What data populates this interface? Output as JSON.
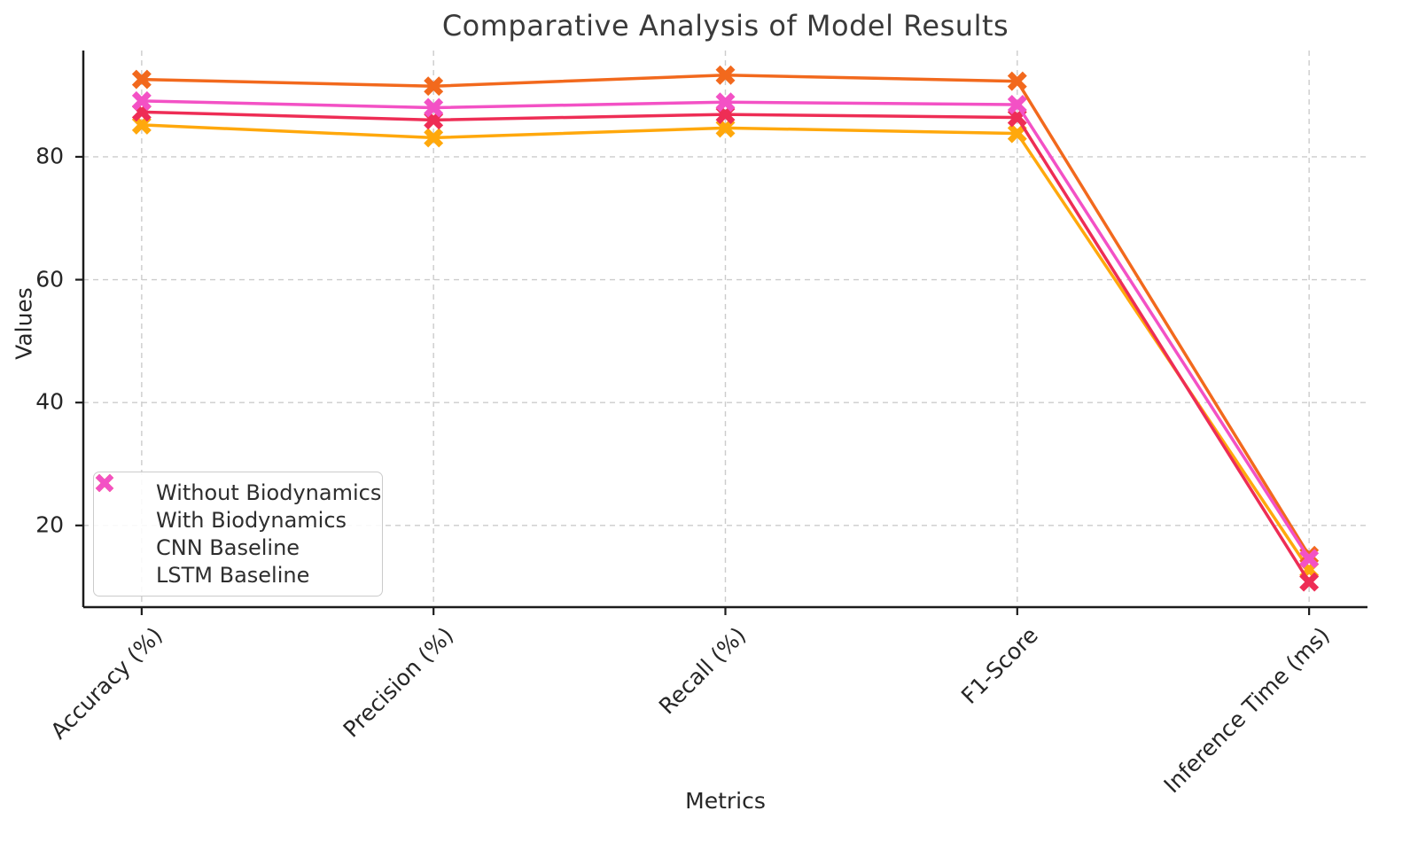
{
  "chart_data": {
    "type": "line",
    "title": "Comparative Analysis of Model Results",
    "xlabel": "Metrics",
    "ylabel": "Values",
    "categories": [
      "Accuracy (%)",
      "Precision (%)",
      "Recall (%)",
      "F1-Score",
      "Inference Time (ms)"
    ],
    "yticks": [
      20,
      40,
      60,
      80
    ],
    "ylim": [
      6.7,
      97.3
    ],
    "grid": true,
    "grid_style": "dashed",
    "legend_position": "lower-left",
    "marker": "X",
    "series": [
      {
        "name": "Without Biodynamics",
        "color": "#FFA80C",
        "values": [
          85.2,
          83.1,
          84.7,
          83.8,
          12.8
        ]
      },
      {
        "name": "With Biodynamics",
        "color": "#F2691D",
        "values": [
          92.6,
          91.5,
          93.3,
          92.3,
          15.1
        ]
      },
      {
        "name": "CNN Baseline",
        "color": "#EE2D55",
        "values": [
          87.3,
          86.0,
          86.9,
          86.4,
          10.8
        ]
      },
      {
        "name": "LSTM Baseline",
        "color": "#F351C5",
        "values": [
          89.1,
          88.0,
          88.9,
          88.5,
          14.6
        ]
      }
    ]
  }
}
